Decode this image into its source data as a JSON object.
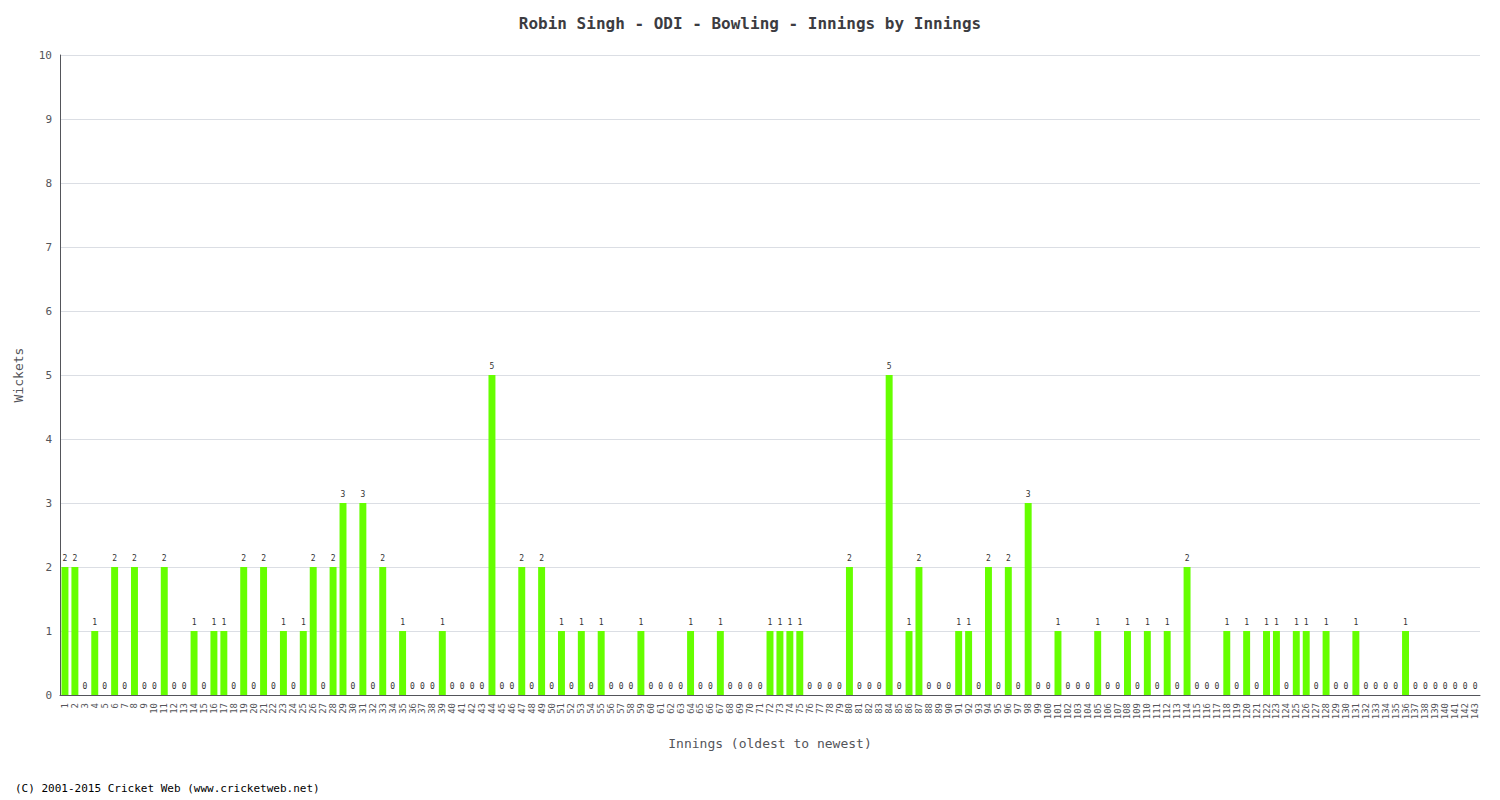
{
  "chart_data": {
    "type": "bar",
    "title": "Robin Singh - ODI - Bowling - Innings by Innings",
    "xlabel": "Innings (oldest to newest)",
    "ylabel": "Wickets",
    "annotations": [
      "(C) 2001-2015 Cricket Web (www.cricketweb.net)"
    ],
    "categories": [
      "1",
      "2",
      "3",
      "4",
      "5",
      "6",
      "7",
      "8",
      "9",
      "10",
      "11",
      "12",
      "13",
      "14",
      "15",
      "16",
      "17",
      "18",
      "19",
      "20",
      "21",
      "22",
      "23",
      "24",
      "25",
      "26",
      "27",
      "28",
      "29",
      "30",
      "31",
      "32",
      "33",
      "34",
      "35",
      "36",
      "37",
      "38",
      "39",
      "40",
      "41",
      "42",
      "43",
      "44",
      "45",
      "46",
      "47",
      "48",
      "49",
      "50",
      "51",
      "52",
      "53",
      "54",
      "55",
      "56",
      "57",
      "58",
      "59",
      "60",
      "61",
      "62",
      "63",
      "64",
      "65",
      "66",
      "67",
      "68",
      "69",
      "70",
      "71",
      "72",
      "73",
      "74",
      "75",
      "76",
      "77",
      "78",
      "79",
      "80",
      "81",
      "82",
      "83",
      "84",
      "85",
      "86",
      "87",
      "88",
      "89",
      "90",
      "91",
      "92",
      "93",
      "94",
      "95",
      "96",
      "97",
      "98",
      "99",
      "100",
      "101",
      "102",
      "103",
      "104",
      "105",
      "106",
      "107",
      "108",
      "109",
      "110",
      "111",
      "112",
      "113",
      "114",
      "115",
      "116",
      "117",
      "118",
      "119",
      "120",
      "121",
      "122",
      "123",
      "124",
      "125",
      "126",
      "127",
      "128",
      "129",
      "130",
      "131",
      "132",
      "133",
      "134",
      "135",
      "136",
      "137",
      "138",
      "139",
      "140",
      "141",
      "142",
      "143"
    ],
    "values": [
      2,
      2,
      0,
      1,
      0,
      2,
      0,
      2,
      0,
      0,
      2,
      0,
      0,
      1,
      0,
      1,
      1,
      0,
      2,
      0,
      2,
      0,
      1,
      0,
      1,
      2,
      0,
      2,
      3,
      0,
      3,
      0,
      2,
      0,
      1,
      0,
      0,
      0,
      1,
      0,
      0,
      0,
      0,
      5,
      0,
      0,
      2,
      0,
      2,
      0,
      1,
      0,
      1,
      0,
      1,
      0,
      0,
      0,
      1,
      0,
      0,
      0,
      0,
      1,
      0,
      0,
      1,
      0,
      0,
      0,
      0,
      1,
      1,
      1,
      1,
      0,
      0,
      0,
      0,
      2,
      0,
      0,
      0,
      5,
      0,
      1,
      2,
      0,
      0,
      0,
      1,
      1,
      0,
      2,
      0,
      2,
      0,
      3,
      0,
      0,
      1,
      0,
      0,
      0,
      1,
      0,
      0,
      1,
      0,
      1,
      0,
      1,
      0,
      2,
      0,
      0,
      0,
      1,
      0,
      1,
      0,
      1,
      1,
      0,
      1,
      1,
      0,
      1,
      0,
      0,
      1,
      0,
      0,
      0,
      0,
      1,
      0,
      0,
      0,
      0,
      0,
      0,
      0
    ],
    "color": "#66ff00",
    "ylim": [
      0,
      10
    ],
    "yticks": [
      0,
      1,
      2,
      3,
      4,
      5,
      6,
      7,
      8,
      9,
      10
    ],
    "grid": true,
    "data_labels": true
  }
}
